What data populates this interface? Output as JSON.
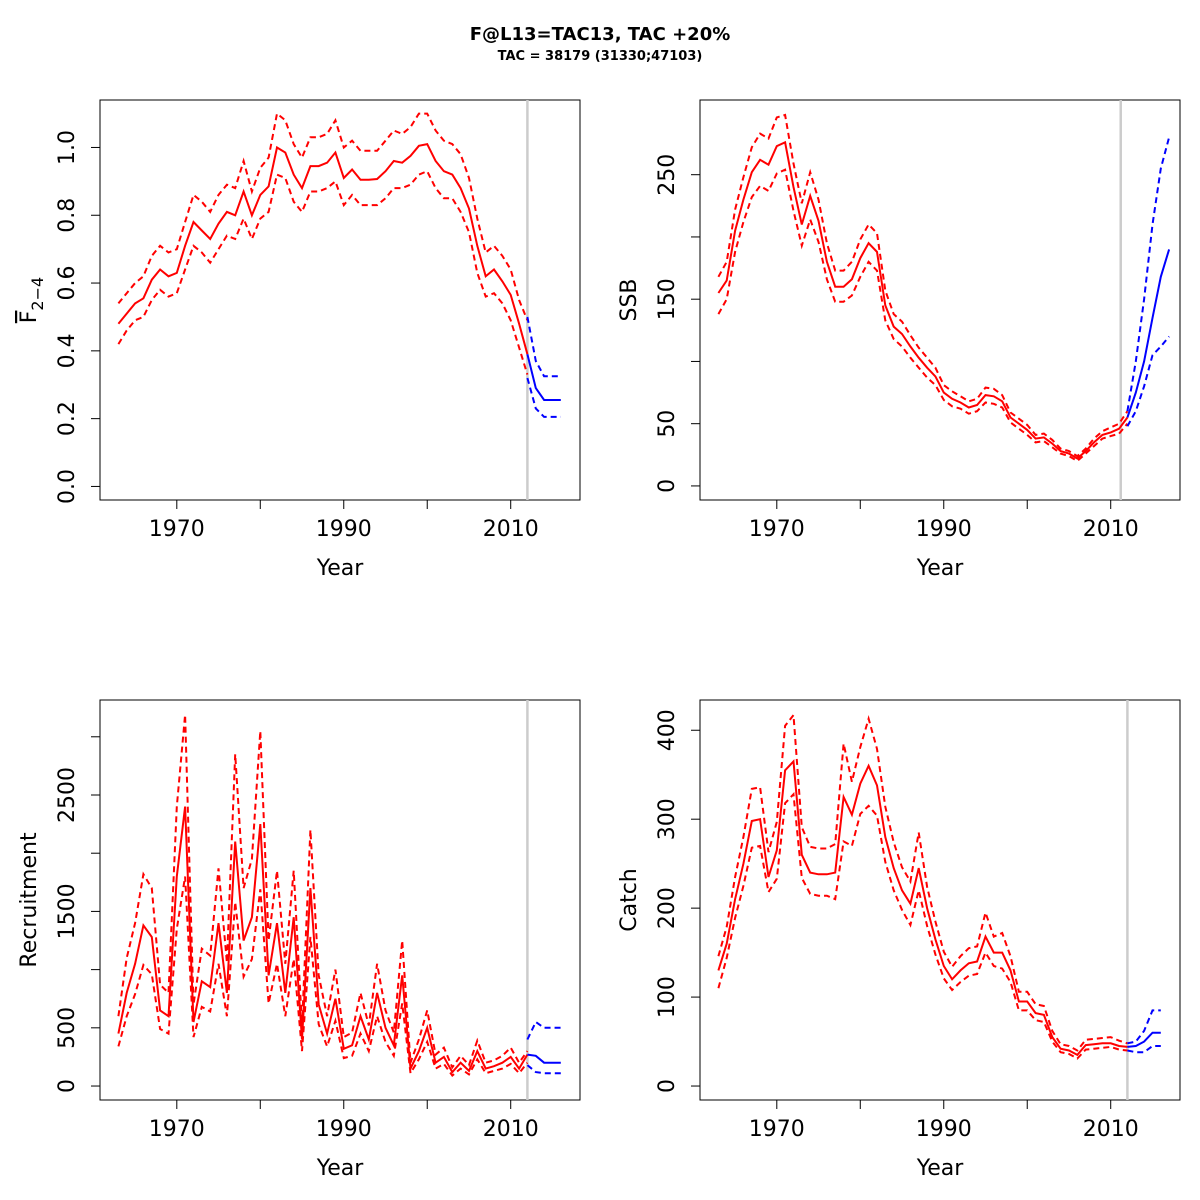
{
  "title": "F@L13=TAC13, TAC +20%",
  "subtitle": "TAC = 38179 (31330;47103)",
  "colors": {
    "history": "#ff0000",
    "forecast": "#0000ff",
    "divider": "#cccccc"
  },
  "chart_data": [
    {
      "type": "line",
      "id": "f",
      "xlabel": "Year",
      "ylabel": "F",
      "ylabel_bar": "F",
      "ylabel_sub": "2−4",
      "xlim": [
        1960.8,
        2018.3
      ],
      "ylim": [
        -0.04,
        1.14
      ],
      "xticks": [
        1970,
        1980,
        1990,
        2000,
        2010
      ],
      "xticklabels": [
        "1970",
        "1990",
        "2010"
      ],
      "yticks": [
        0,
        0.2,
        0.4,
        0.6,
        0.8,
        1.0
      ],
      "yticklabels": [
        "0.0",
        "0.2",
        "0.4",
        "0.6",
        "0.8",
        "1.0"
      ],
      "divider_year": 2012,
      "history": {
        "start": 1963,
        "median": [
          0.48,
          0.51,
          0.54,
          0.555,
          0.61,
          0.64,
          0.62,
          0.63,
          0.71,
          0.78,
          0.755,
          0.73,
          0.775,
          0.81,
          0.8,
          0.87,
          0.8,
          0.86,
          0.885,
          1.0,
          0.985,
          0.92,
          0.88,
          0.945,
          0.945,
          0.955,
          0.985,
          0.91,
          0.935,
          0.905,
          0.905,
          0.907,
          0.93,
          0.96,
          0.955,
          0.975,
          1.005,
          1.01,
          0.96,
          0.93,
          0.92,
          0.88,
          0.82,
          0.71,
          0.62,
          0.64,
          0.605,
          0.565,
          0.48,
          0.39
        ],
        "upper": [
          0.54,
          0.57,
          0.6,
          0.62,
          0.68,
          0.71,
          0.69,
          0.7,
          0.78,
          0.86,
          0.84,
          0.81,
          0.86,
          0.89,
          0.88,
          0.96,
          0.87,
          0.94,
          0.97,
          1.1,
          1.08,
          1.01,
          0.97,
          1.03,
          1.03,
          1.04,
          1.08,
          1.0,
          1.02,
          0.99,
          0.99,
          0.99,
          1.02,
          1.05,
          1.04,
          1.06,
          1.1,
          1.1,
          1.05,
          1.02,
          1.01,
          0.98,
          0.91,
          0.79,
          0.69,
          0.71,
          0.68,
          0.64,
          0.55,
          0.49
        ],
        "lower": [
          0.42,
          0.46,
          0.49,
          0.5,
          0.55,
          0.58,
          0.56,
          0.57,
          0.64,
          0.71,
          0.69,
          0.66,
          0.7,
          0.74,
          0.73,
          0.79,
          0.73,
          0.79,
          0.81,
          0.92,
          0.91,
          0.84,
          0.81,
          0.87,
          0.87,
          0.88,
          0.9,
          0.83,
          0.86,
          0.83,
          0.83,
          0.83,
          0.85,
          0.88,
          0.88,
          0.89,
          0.92,
          0.93,
          0.88,
          0.85,
          0.85,
          0.81,
          0.75,
          0.63,
          0.56,
          0.57,
          0.54,
          0.49,
          0.41,
          0.33
        ]
      },
      "forecast": {
        "start": 2012,
        "median": [
          0.39,
          0.29,
          0.255,
          0.255,
          0.255
        ],
        "upper": [
          0.5,
          0.37,
          0.325,
          0.325,
          0.325
        ],
        "lower": [
          0.32,
          0.23,
          0.205,
          0.205,
          0.205
        ]
      }
    },
    {
      "type": "line",
      "id": "ssb",
      "xlabel": "Year",
      "ylabel": "SSB",
      "xlim": [
        1960.8,
        2018.3
      ],
      "ylim": [
        -11.3,
        310
      ],
      "xticks": [
        1970,
        1980,
        1990,
        2000,
        2010
      ],
      "xticklabels": [
        "1970",
        "1990",
        "2010"
      ],
      "yticks": [
        0,
        50,
        100,
        150,
        200,
        250
      ],
      "yticklabels": [
        "0",
        "50",
        "150",
        "250"
      ],
      "divider_year": 2011.2,
      "history": {
        "start": 1963,
        "median": [
          155,
          165,
          205,
          230,
          252,
          262,
          258,
          273,
          276,
          240,
          210,
          233,
          213,
          180,
          160,
          160,
          166,
          183,
          195,
          188,
          145,
          128,
          122,
          112,
          103,
          95,
          88,
          75,
          70,
          67,
          63,
          65,
          73,
          72,
          68,
          55,
          50,
          45,
          38,
          39,
          34,
          28,
          26,
          22,
          28,
          35,
          41,
          43,
          46,
          55
        ],
        "upper": [
          168,
          180,
          222,
          248,
          272,
          283,
          279,
          296,
          298,
          259,
          227,
          252,
          230,
          195,
          173,
          173,
          180,
          198,
          210,
          203,
          157,
          138,
          132,
          121,
          111,
          103,
          95,
          81,
          76,
          72,
          68,
          70,
          79,
          78,
          73,
          59,
          54,
          49,
          41,
          42,
          37,
          30,
          28,
          24,
          30,
          38,
          44,
          47,
          50,
          60
        ],
        "lower": [
          138,
          150,
          188,
          212,
          232,
          241,
          237,
          251,
          254,
          221,
          193,
          214,
          196,
          166,
          148,
          148,
          153,
          168,
          180,
          173,
          133,
          118,
          112,
          103,
          95,
          87,
          81,
          69,
          64,
          62,
          58,
          60,
          67,
          66,
          63,
          51,
          46,
          41,
          35,
          36,
          31,
          26,
          24,
          20,
          26,
          32,
          38,
          40,
          42,
          50
        ]
      },
      "forecast": {
        "start": 2012,
        "median": [
          55,
          75,
          100,
          135,
          168,
          190
        ],
        "upper": [
          60,
          100,
          150,
          210,
          255,
          280
        ],
        "lower": [
          48,
          60,
          80,
          105,
          112,
          120
        ]
      }
    },
    {
      "type": "line",
      "id": "rec",
      "xlabel": "Year",
      "ylabel": "Recruitment",
      "xlim": [
        1960.8,
        2018.3
      ],
      "ylim": [
        -120,
        3316
      ],
      "xticks": [
        1970,
        1980,
        1990,
        2000,
        2010
      ],
      "xticklabels": [
        "1970",
        "1990",
        "2010"
      ],
      "yticks": [
        0,
        500,
        1000,
        1500,
        2000,
        2500,
        3000
      ],
      "yticklabels": [
        "0",
        "500",
        "1500",
        "2500"
      ],
      "divider_year": 2012,
      "history": {
        "start": 1963,
        "median": [
          450,
          800,
          1050,
          1380,
          1280,
          650,
          600,
          1800,
          2400,
          550,
          900,
          850,
          1400,
          800,
          2100,
          1250,
          1450,
          2250,
          950,
          1400,
          800,
          1450,
          400,
          1700,
          700,
          450,
          750,
          320,
          350,
          600,
          400,
          800,
          500,
          350,
          950,
          150,
          300,
          500,
          200,
          250,
          120,
          200,
          130,
          300,
          150,
          170,
          200,
          250,
          150,
          270
        ],
        "upper": [
          600,
          1100,
          1400,
          1820,
          1700,
          870,
          800,
          2400,
          3190,
          700,
          1180,
          1120,
          1870,
          1060,
          2850,
          1700,
          1950,
          3050,
          1250,
          1850,
          1050,
          1850,
          520,
          2200,
          950,
          600,
          1000,
          420,
          460,
          800,
          520,
          1050,
          650,
          460,
          1250,
          200,
          400,
          650,
          270,
          330,
          160,
          260,
          180,
          390,
          200,
          220,
          260,
          330,
          200,
          300
        ],
        "lower": [
          340,
          600,
          790,
          1040,
          960,
          490,
          450,
          1350,
          1800,
          420,
          680,
          640,
          1050,
          600,
          1580,
          940,
          1090,
          1690,
          710,
          1050,
          600,
          1090,
          300,
          1280,
          530,
          340,
          560,
          240,
          260,
          450,
          300,
          600,
          380,
          260,
          710,
          110,
          230,
          380,
          150,
          190,
          90,
          150,
          100,
          230,
          110,
          130,
          150,
          190,
          110,
          200
        ]
      },
      "forecast": {
        "start": 2012,
        "median": [
          270,
          260,
          200,
          200,
          200
        ],
        "upper": [
          400,
          550,
          500,
          500,
          500
        ],
        "lower": [
          180,
          120,
          110,
          110,
          110
        ]
      }
    },
    {
      "type": "line",
      "id": "catch",
      "xlabel": "Year",
      "ylabel": "Catch",
      "xlim": [
        1960.8,
        2018.3
      ],
      "ylim": [
        -15.7,
        434
      ],
      "xticks": [
        1970,
        1980,
        1990,
        2000,
        2010
      ],
      "xticklabels": [
        "1970",
        "1990",
        "2010"
      ],
      "yticks": [
        0,
        100,
        200,
        300,
        400
      ],
      "yticklabels": [
        "0",
        "100",
        "200",
        "300",
        "400"
      ],
      "divider_year": 2012,
      "history": {
        "start": 1963,
        "median": [
          130,
          160,
          210,
          250,
          298,
          300,
          235,
          265,
          355,
          365,
          260,
          240,
          238,
          238,
          240,
          325,
          305,
          340,
          360,
          338,
          280,
          245,
          220,
          205,
          245,
          200,
          165,
          135,
          120,
          130,
          138,
          140,
          168,
          150,
          150,
          130,
          95,
          95,
          82,
          80,
          55,
          42,
          40,
          35,
          46,
          47,
          48,
          48,
          45,
          44
        ],
        "upper": [
          146,
          179,
          235,
          280,
          334,
          336,
          263,
          297,
          405,
          417,
          291,
          269,
          267,
          267,
          272,
          385,
          342,
          381,
          413,
          379,
          314,
          274,
          246,
          230,
          285,
          224,
          185,
          151,
          134,
          146,
          155,
          157,
          195,
          168,
          172,
          146,
          106,
          106,
          92,
          90,
          62,
          47,
          45,
          40,
          52,
          53,
          54,
          55,
          51,
          48
        ],
        "lower": [
          110,
          144,
          189,
          225,
          268,
          270,
          218,
          233,
          318,
          328,
          234,
          216,
          214,
          214,
          210,
          275,
          270,
          306,
          315,
          304,
          252,
          220,
          198,
          181,
          220,
          180,
          148,
          121,
          108,
          117,
          124,
          126,
          150,
          135,
          132,
          117,
          85,
          85,
          74,
          72,
          50,
          38,
          36,
          31,
          41,
          42,
          43,
          44,
          41,
          40
        ]
      },
      "forecast": {
        "start": 2012,
        "median": [
          44,
          45,
          50,
          60,
          60
        ],
        "upper": [
          48,
          50,
          62,
          85,
          85
        ],
        "lower": [
          40,
          38,
          38,
          45,
          45
        ]
      }
    }
  ]
}
